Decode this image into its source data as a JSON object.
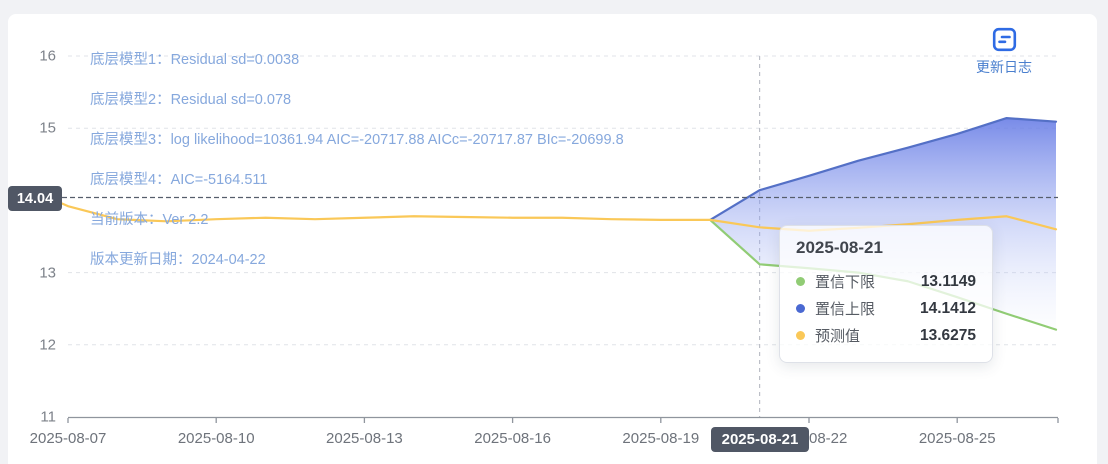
{
  "chart_data": {
    "type": "line",
    "title": "",
    "x": [
      "2025-08-07",
      "2025-08-08",
      "2025-08-09",
      "2025-08-10",
      "2025-08-11",
      "2025-08-12",
      "2025-08-13",
      "2025-08-14",
      "2025-08-15",
      "2025-08-16",
      "2025-08-17",
      "2025-08-18",
      "2025-08-19",
      "2025-08-20",
      "2025-08-21",
      "2025-08-22",
      "2025-08-23",
      "2025-08-24",
      "2025-08-25",
      "2025-08-26",
      "2025-08-27"
    ],
    "series": [
      {
        "name": "置信上限",
        "color": "#5470c6",
        "values": [
          null,
          null,
          null,
          null,
          null,
          null,
          null,
          null,
          null,
          null,
          null,
          null,
          null,
          13.73,
          14.1412,
          14.34,
          14.55,
          14.73,
          14.92,
          15.14,
          15.09
        ]
      },
      {
        "name": "置信下限",
        "color": "#91cc75",
        "values": [
          null,
          null,
          null,
          null,
          null,
          null,
          null,
          null,
          null,
          null,
          null,
          null,
          null,
          13.73,
          13.1149,
          13.06,
          13.0,
          12.88,
          12.66,
          12.43,
          12.21
        ]
      },
      {
        "name": "预测值",
        "color": "#fac858",
        "values": [
          13.92,
          13.74,
          13.71,
          13.74,
          13.76,
          13.74,
          13.76,
          13.78,
          13.77,
          13.76,
          13.76,
          13.74,
          13.73,
          13.73,
          13.6275,
          13.58,
          13.62,
          13.67,
          13.73,
          13.78,
          13.6
        ]
      }
    ],
    "band": {
      "upper": "置信上限",
      "lower": "置信下限",
      "fill_top": "#667be5",
      "fill_bottom": "#ffffff"
    },
    "ylim": [
      11,
      16
    ],
    "y_ticks": [
      16,
      15,
      13,
      12,
      11
    ],
    "x_ticks": [
      "2025-08-07",
      "2025-08-10",
      "2025-08-13",
      "2025-08-16",
      "2025-08-19",
      "2025-08-22",
      "2025-08-25"
    ],
    "grid": "dashed",
    "marker_line": {
      "value": 14.04,
      "label": "14.04"
    },
    "axis_pointer": {
      "date": "2025-08-21",
      "label": "2025-08-21"
    }
  },
  "annotations": [
    "底层模型1：Residual sd=0.0038",
    "底层模型2：Residual sd=0.078",
    "底层模型3：log likelihood=10361.94 AIC=-20717.88 AICc=-20717.87 BIc=-20699.8",
    "底层模型4：AIC=-5164.511",
    "当前版本：Ver 2.2",
    "版本更新日期：2024-04-22"
  ],
  "tooltip": {
    "title": "2025-08-21",
    "rows": [
      {
        "label": "置信下限",
        "value": "13.1149",
        "color": "#91cc75"
      },
      {
        "label": "置信上限",
        "value": "14.1412",
        "color": "#4a69d2"
      },
      {
        "label": "预测值",
        "value": "13.6275",
        "color": "#fac858"
      }
    ]
  },
  "update_log": {
    "label": "更新日志",
    "icon_color": "#2f6be4"
  },
  "colors": {
    "axis_pointer_badge_bg": "#505765",
    "annotation_text": "#86a8dd",
    "grid_line": "#e0e3e8",
    "marker_line": "#565e6c",
    "pointer_line": "#bcbfc7",
    "axis_line": "#8f959d",
    "card_bg": "#ffffff",
    "page_bg": "#f1f2f5"
  }
}
